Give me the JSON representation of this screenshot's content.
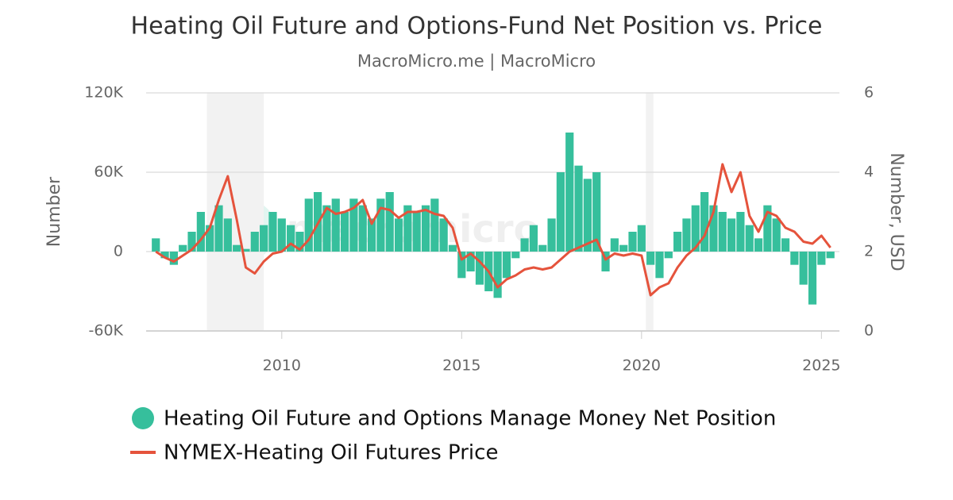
{
  "chart_data": {
    "type": "bar-line",
    "title": "Heating Oil Future and Options-Fund Net Position vs. Price",
    "subtitle": "MacroMicro.me | MacroMicro",
    "watermark": "macromicro",
    "y_label": "Number",
    "y2_label": "Number, USD",
    "x": [
      2006.5,
      2006.75,
      2007,
      2007.25,
      2007.5,
      2007.75,
      2008,
      2008.25,
      2008.5,
      2008.75,
      2009,
      2009.25,
      2009.5,
      2009.75,
      2010,
      2010.25,
      2010.5,
      2010.75,
      2011,
      2011.25,
      2011.5,
      2011.75,
      2012,
      2012.25,
      2012.5,
      2012.75,
      2013,
      2013.25,
      2013.5,
      2013.75,
      2014,
      2014.25,
      2014.5,
      2014.75,
      2015,
      2015.25,
      2015.5,
      2015.75,
      2016,
      2016.25,
      2016.5,
      2016.75,
      2017,
      2017.25,
      2017.5,
      2017.75,
      2018,
      2018.25,
      2018.5,
      2018.75,
      2019,
      2019.25,
      2019.5,
      2019.75,
      2020,
      2020.25,
      2020.5,
      2020.75,
      2021,
      2021.25,
      2021.5,
      2021.75,
      2022,
      2022.25,
      2022.5,
      2022.75,
      2023,
      2023.25,
      2023.5,
      2023.75,
      2024,
      2024.25,
      2024.5,
      2024.75,
      2025,
      2025.25
    ],
    "series": [
      {
        "name": "Heating Oil Future and Options Manage Money Net Position",
        "color": "#36bf9c",
        "axis": "y",
        "values": [
          10000,
          -5000,
          -10000,
          5000,
          15000,
          30000,
          20000,
          35000,
          25000,
          5000,
          2000,
          15000,
          20000,
          30000,
          25000,
          20000,
          15000,
          40000,
          45000,
          35000,
          40000,
          30000,
          40000,
          35000,
          25000,
          40000,
          45000,
          25000,
          35000,
          30000,
          35000,
          40000,
          25000,
          5000,
          -20000,
          -15000,
          -25000,
          -30000,
          -35000,
          -20000,
          -5000,
          10000,
          20000,
          5000,
          25000,
          60000,
          90000,
          65000,
          55000,
          60000,
          -15000,
          10000,
          5000,
          15000,
          20000,
          -10000,
          -20000,
          -5000,
          15000,
          25000,
          35000,
          45000,
          35000,
          30000,
          25000,
          30000,
          20000,
          10000,
          35000,
          25000,
          10000,
          -10000,
          -25000,
          -40000,
          -10000,
          -5000
        ]
      },
      {
        "name": "NYMEX-Heating Oil Futures Price",
        "color": "#e5533c",
        "axis": "y2",
        "values": [
          2.0,
          1.85,
          1.75,
          1.9,
          2.05,
          2.3,
          2.6,
          3.3,
          3.9,
          2.8,
          1.6,
          1.45,
          1.75,
          1.95,
          2.0,
          2.2,
          2.05,
          2.3,
          2.7,
          3.1,
          2.95,
          3.0,
          3.1,
          3.3,
          2.7,
          3.1,
          3.05,
          2.85,
          3.0,
          3.0,
          3.05,
          2.95,
          2.9,
          2.6,
          1.8,
          1.95,
          1.75,
          1.5,
          1.1,
          1.3,
          1.4,
          1.55,
          1.6,
          1.55,
          1.6,
          1.8,
          2.0,
          2.1,
          2.2,
          2.3,
          1.8,
          1.95,
          1.9,
          1.95,
          1.9,
          0.9,
          1.1,
          1.2,
          1.6,
          1.9,
          2.1,
          2.4,
          3.0,
          4.2,
          3.5,
          4.0,
          2.9,
          2.5,
          3.0,
          2.9,
          2.6,
          2.5,
          2.25,
          2.2,
          2.4,
          2.1
        ]
      }
    ],
    "shaded_ranges": [
      [
        2007.92,
        2009.5
      ],
      [
        2020.12,
        2020.33
      ]
    ],
    "xlim": [
      2006.23,
      2025.5
    ],
    "xticks": [
      2010,
      2015,
      2020,
      2025
    ],
    "ylim": [
      -60000,
      120000
    ],
    "yticks": [
      {
        "value": -60000,
        "label": "-60K"
      },
      0,
      {
        "value": 60000,
        "label": "60K"
      },
      {
        "value": 120000,
        "label": "120K"
      }
    ],
    "y2lim": [
      0,
      6
    ],
    "y2ticks": [
      0,
      2,
      4,
      6
    ],
    "grid": true
  }
}
